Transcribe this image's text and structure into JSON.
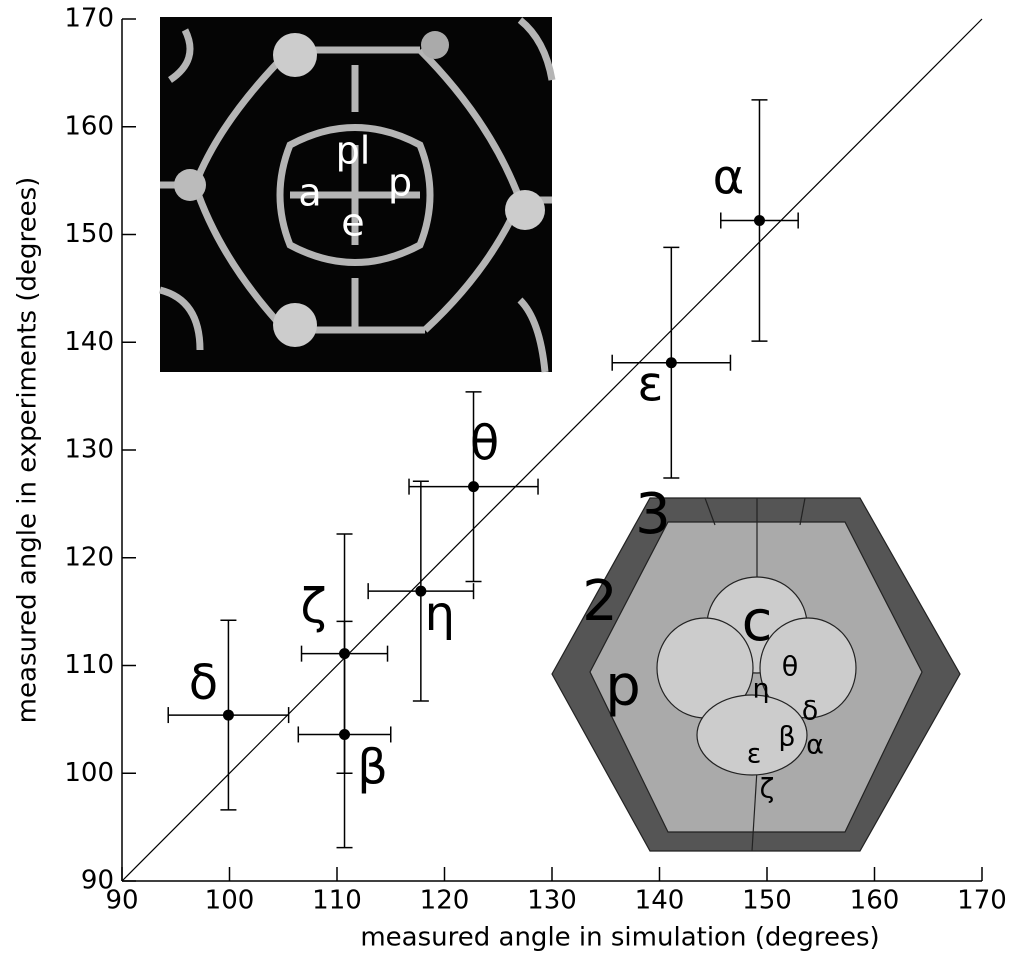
{
  "chart_data": {
    "type": "scatter",
    "xlabel": "measured angle in simulation (degrees)",
    "ylabel": "measured angle in experiments (degrees)",
    "xlim": [
      90,
      170
    ],
    "ylim": [
      90,
      170
    ],
    "xticks": [
      90,
      100,
      110,
      120,
      130,
      140,
      150,
      160,
      170
    ],
    "yticks": [
      90,
      100,
      110,
      120,
      130,
      140,
      150,
      160,
      170
    ],
    "diagonal": true,
    "series": [
      {
        "color": "#000000",
        "labels": [
          "α",
          "ε",
          "θ",
          "η",
          "ζ",
          "β",
          "δ"
        ],
        "x": [
          149.3,
          141.1,
          122.7,
          117.8,
          110.7,
          110.7,
          99.9
        ],
        "values": [
          151.3,
          138.1,
          126.6,
          116.9,
          111.1,
          103.6,
          105.4
        ],
        "xerr": [
          3.6,
          5.5,
          6.0,
          4.9,
          4.0,
          4.3,
          5.6
        ],
        "yerr": [
          11.2,
          10.7,
          8.8,
          10.2,
          11.1,
          10.5,
          8.8
        ]
      }
    ],
    "photo_labels": [
      "a",
      "pl",
      "p",
      "e"
    ],
    "diagram_labels": [
      "3",
      "2",
      "p",
      "c",
      "η",
      "θ",
      "δ",
      "β",
      "α",
      "ε",
      "ζ"
    ]
  }
}
